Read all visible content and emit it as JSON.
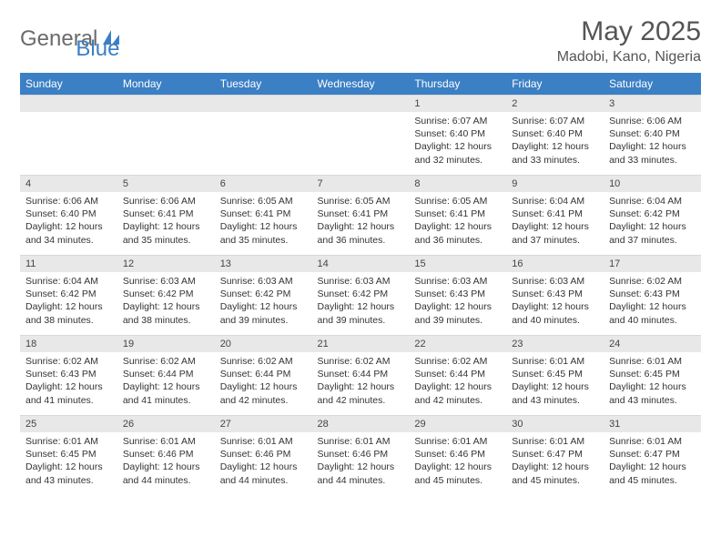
{
  "brand": {
    "text_gray": "General",
    "text_blue": "Blue",
    "logo_color": "#3b7fc4"
  },
  "title": "May 2025",
  "location": "Madobi, Kano, Nigeria",
  "colors": {
    "header_bg": "#3b7fc4",
    "header_fg": "#ffffff",
    "daynum_bg": "#e8e8e8",
    "text": "#333333",
    "page_bg": "#ffffff"
  },
  "weekdays": [
    "Sunday",
    "Monday",
    "Tuesday",
    "Wednesday",
    "Thursday",
    "Friday",
    "Saturday"
  ],
  "weeks": [
    [
      null,
      null,
      null,
      null,
      {
        "n": "1",
        "sr": "Sunrise: 6:07 AM",
        "ss": "Sunset: 6:40 PM",
        "dl": "Daylight: 12 hours and 32 minutes."
      },
      {
        "n": "2",
        "sr": "Sunrise: 6:07 AM",
        "ss": "Sunset: 6:40 PM",
        "dl": "Daylight: 12 hours and 33 minutes."
      },
      {
        "n": "3",
        "sr": "Sunrise: 6:06 AM",
        "ss": "Sunset: 6:40 PM",
        "dl": "Daylight: 12 hours and 33 minutes."
      }
    ],
    [
      {
        "n": "4",
        "sr": "Sunrise: 6:06 AM",
        "ss": "Sunset: 6:40 PM",
        "dl": "Daylight: 12 hours and 34 minutes."
      },
      {
        "n": "5",
        "sr": "Sunrise: 6:06 AM",
        "ss": "Sunset: 6:41 PM",
        "dl": "Daylight: 12 hours and 35 minutes."
      },
      {
        "n": "6",
        "sr": "Sunrise: 6:05 AM",
        "ss": "Sunset: 6:41 PM",
        "dl": "Daylight: 12 hours and 35 minutes."
      },
      {
        "n": "7",
        "sr": "Sunrise: 6:05 AM",
        "ss": "Sunset: 6:41 PM",
        "dl": "Daylight: 12 hours and 36 minutes."
      },
      {
        "n": "8",
        "sr": "Sunrise: 6:05 AM",
        "ss": "Sunset: 6:41 PM",
        "dl": "Daylight: 12 hours and 36 minutes."
      },
      {
        "n": "9",
        "sr": "Sunrise: 6:04 AM",
        "ss": "Sunset: 6:41 PM",
        "dl": "Daylight: 12 hours and 37 minutes."
      },
      {
        "n": "10",
        "sr": "Sunrise: 6:04 AM",
        "ss": "Sunset: 6:42 PM",
        "dl": "Daylight: 12 hours and 37 minutes."
      }
    ],
    [
      {
        "n": "11",
        "sr": "Sunrise: 6:04 AM",
        "ss": "Sunset: 6:42 PM",
        "dl": "Daylight: 12 hours and 38 minutes."
      },
      {
        "n": "12",
        "sr": "Sunrise: 6:03 AM",
        "ss": "Sunset: 6:42 PM",
        "dl": "Daylight: 12 hours and 38 minutes."
      },
      {
        "n": "13",
        "sr": "Sunrise: 6:03 AM",
        "ss": "Sunset: 6:42 PM",
        "dl": "Daylight: 12 hours and 39 minutes."
      },
      {
        "n": "14",
        "sr": "Sunrise: 6:03 AM",
        "ss": "Sunset: 6:42 PM",
        "dl": "Daylight: 12 hours and 39 minutes."
      },
      {
        "n": "15",
        "sr": "Sunrise: 6:03 AM",
        "ss": "Sunset: 6:43 PM",
        "dl": "Daylight: 12 hours and 39 minutes."
      },
      {
        "n": "16",
        "sr": "Sunrise: 6:03 AM",
        "ss": "Sunset: 6:43 PM",
        "dl": "Daylight: 12 hours and 40 minutes."
      },
      {
        "n": "17",
        "sr": "Sunrise: 6:02 AM",
        "ss": "Sunset: 6:43 PM",
        "dl": "Daylight: 12 hours and 40 minutes."
      }
    ],
    [
      {
        "n": "18",
        "sr": "Sunrise: 6:02 AM",
        "ss": "Sunset: 6:43 PM",
        "dl": "Daylight: 12 hours and 41 minutes."
      },
      {
        "n": "19",
        "sr": "Sunrise: 6:02 AM",
        "ss": "Sunset: 6:44 PM",
        "dl": "Daylight: 12 hours and 41 minutes."
      },
      {
        "n": "20",
        "sr": "Sunrise: 6:02 AM",
        "ss": "Sunset: 6:44 PM",
        "dl": "Daylight: 12 hours and 42 minutes."
      },
      {
        "n": "21",
        "sr": "Sunrise: 6:02 AM",
        "ss": "Sunset: 6:44 PM",
        "dl": "Daylight: 12 hours and 42 minutes."
      },
      {
        "n": "22",
        "sr": "Sunrise: 6:02 AM",
        "ss": "Sunset: 6:44 PM",
        "dl": "Daylight: 12 hours and 42 minutes."
      },
      {
        "n": "23",
        "sr": "Sunrise: 6:01 AM",
        "ss": "Sunset: 6:45 PM",
        "dl": "Daylight: 12 hours and 43 minutes."
      },
      {
        "n": "24",
        "sr": "Sunrise: 6:01 AM",
        "ss": "Sunset: 6:45 PM",
        "dl": "Daylight: 12 hours and 43 minutes."
      }
    ],
    [
      {
        "n": "25",
        "sr": "Sunrise: 6:01 AM",
        "ss": "Sunset: 6:45 PM",
        "dl": "Daylight: 12 hours and 43 minutes."
      },
      {
        "n": "26",
        "sr": "Sunrise: 6:01 AM",
        "ss": "Sunset: 6:46 PM",
        "dl": "Daylight: 12 hours and 44 minutes."
      },
      {
        "n": "27",
        "sr": "Sunrise: 6:01 AM",
        "ss": "Sunset: 6:46 PM",
        "dl": "Daylight: 12 hours and 44 minutes."
      },
      {
        "n": "28",
        "sr": "Sunrise: 6:01 AM",
        "ss": "Sunset: 6:46 PM",
        "dl": "Daylight: 12 hours and 44 minutes."
      },
      {
        "n": "29",
        "sr": "Sunrise: 6:01 AM",
        "ss": "Sunset: 6:46 PM",
        "dl": "Daylight: 12 hours and 45 minutes."
      },
      {
        "n": "30",
        "sr": "Sunrise: 6:01 AM",
        "ss": "Sunset: 6:47 PM",
        "dl": "Daylight: 12 hours and 45 minutes."
      },
      {
        "n": "31",
        "sr": "Sunrise: 6:01 AM",
        "ss": "Sunset: 6:47 PM",
        "dl": "Daylight: 12 hours and 45 minutes."
      }
    ]
  ]
}
